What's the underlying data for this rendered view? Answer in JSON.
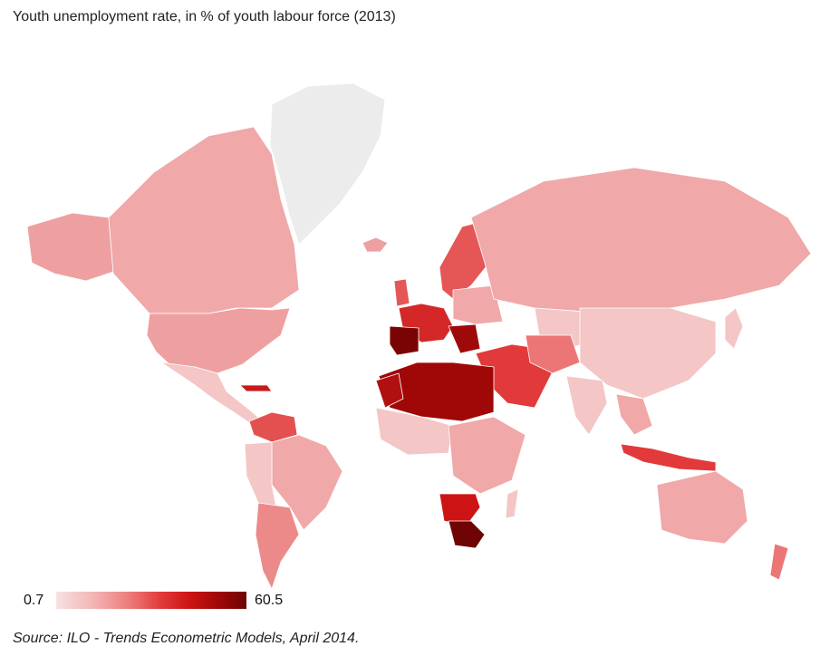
{
  "title": "Youth unemployment rate, in % of youth labour force (2013)",
  "legend": {
    "min_label": "0.7",
    "max_label": "60.5",
    "min_value": 0.7,
    "max_value": 60.5,
    "colors": [
      "#f7e2e2",
      "#f3b4b4",
      "#ec7676",
      "#e23a3a",
      "#cc1414",
      "#a00808",
      "#6e0404"
    ]
  },
  "source": "Source: ILO - Trends Econometric Models, April 2014.",
  "colors": {
    "no_data": "#ececec",
    "water": "#ffffff"
  }
}
